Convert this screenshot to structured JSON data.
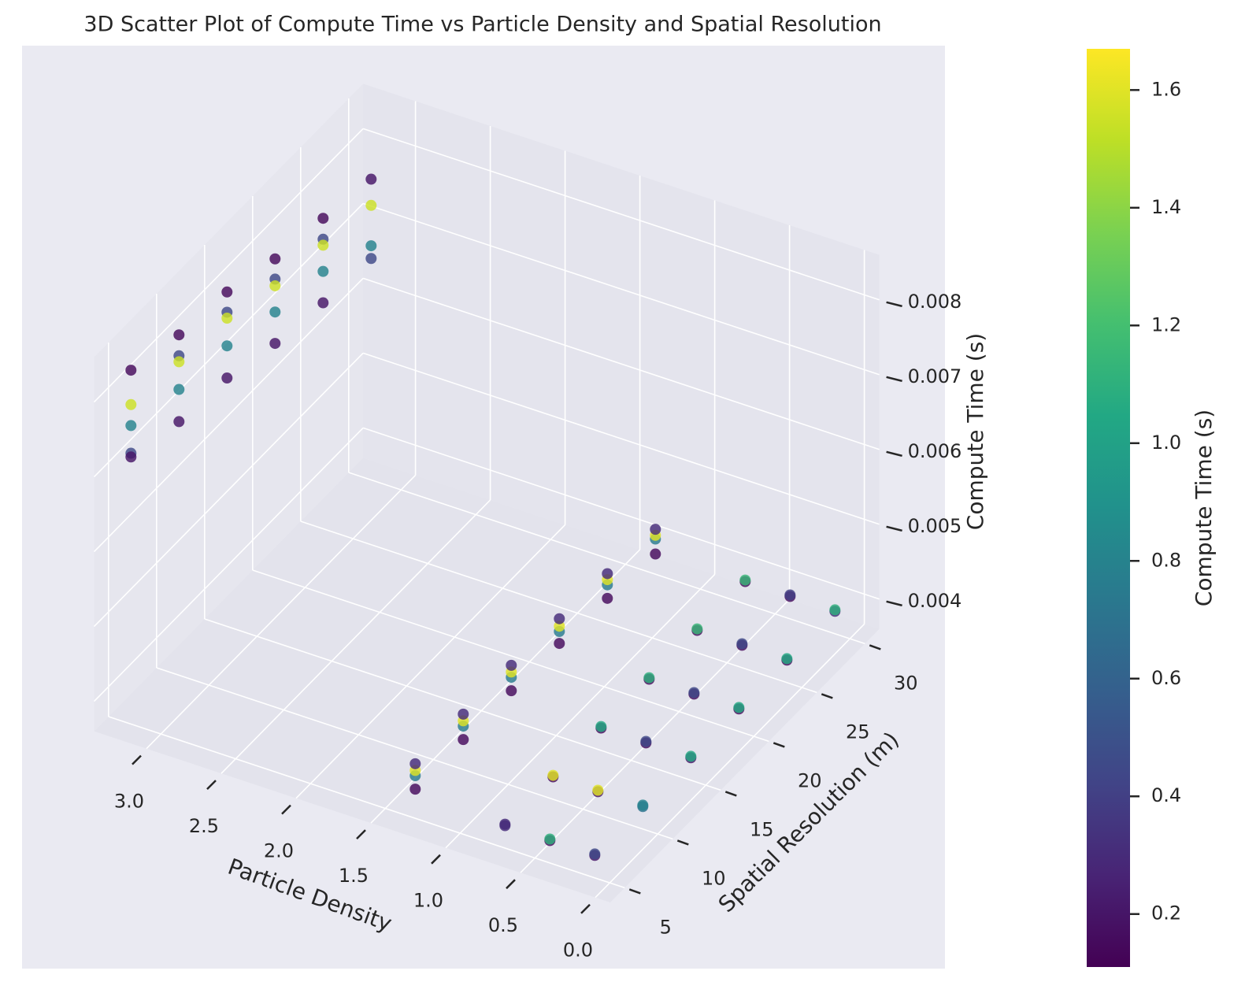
{
  "chart_data": {
    "type": "scatter3d",
    "title": "3D Scatter Plot of Compute Time vs Particle Density and Spatial Resolution",
    "xlabel": "Particle Density",
    "ylabel": "Spatial Resolution (m)",
    "zlabel": "Compute Time (s)",
    "x": [
      3.2,
      3.2,
      3.2,
      3.2,
      3.2,
      3.2,
      3.2,
      3.2,
      3.2,
      3.2,
      3.2,
      3.2,
      3.2,
      3.2,
      3.2,
      3.2,
      3.2,
      3.2,
      3.2,
      3.2,
      3.2,
      3.2,
      3.2,
      3.2,
      3.2,
      3.2,
      3.2,
      3.2,
      3.2,
      1.3,
      1.3,
      1.3,
      1.3,
      1.3,
      1.3,
      1.3,
      1.3,
      1.3,
      1.3,
      1.3,
      1.3,
      1.3,
      1.3,
      1.3,
      1.3,
      1.3,
      1.3,
      1.3,
      1.3,
      1.3,
      1.3,
      1.3,
      1.3,
      0.7,
      0.7,
      0.4,
      0.4,
      0.1,
      0.1,
      0.7,
      0.7,
      0.4,
      0.4,
      0.1,
      0.1,
      0.7,
      0.7,
      0.4,
      0.4,
      0.1,
      0.1,
      0.7,
      0.7,
      0.4,
      0.4,
      0.1,
      0.1,
      0.7,
      0.7,
      0.4,
      0.4,
      0.1,
      0.1,
      0.7,
      0.7,
      0.4,
      0.4,
      0.1,
      0.1
    ],
    "y": [
      5,
      5,
      5,
      5,
      5,
      10,
      10,
      10,
      10,
      10,
      15,
      15,
      15,
      15,
      15,
      20,
      20,
      20,
      20,
      20,
      25,
      25,
      25,
      25,
      25,
      30,
      30,
      30,
      30,
      5,
      5,
      5,
      5,
      10,
      10,
      10,
      10,
      15,
      15,
      15,
      15,
      20,
      20,
      20,
      20,
      25,
      25,
      25,
      25,
      30,
      30,
      30,
      30,
      5,
      5,
      5,
      5,
      5,
      5,
      10,
      10,
      10,
      10,
      10,
      10,
      15,
      15,
      15,
      15,
      15,
      15,
      20,
      20,
      20,
      20,
      20,
      20,
      25,
      25,
      25,
      25,
      25,
      25,
      30,
      30,
      30,
      30,
      30,
      30
    ],
    "z": [
      0.00833,
      0.00787,
      0.00759,
      0.00722,
      0.00717,
      0.00815,
      0.00787,
      0.00779,
      0.00742,
      0.00699,
      0.00807,
      0.0078,
      0.00772,
      0.00735,
      0.00692,
      0.00786,
      0.00759,
      0.0075,
      0.00715,
      0.00673,
      0.00775,
      0.00747,
      0.00739,
      0.00704,
      0.00662,
      0.00762,
      0.00727,
      0.00673,
      0.00656,
      0.00399,
      0.00417,
      0.00424,
      0.00433,
      0.004,
      0.00418,
      0.00425,
      0.00434,
      0.004,
      0.00418,
      0.00425,
      0.00434,
      0.00398,
      0.00414,
      0.00421,
      0.00431,
      0.00393,
      0.00411,
      0.00418,
      0.00426,
      0.00387,
      0.00407,
      0.00412,
      0.0042,
      0.0039,
      0.00392,
      0.0039,
      0.00392,
      0.0039,
      0.00392,
      0.0039,
      0.00392,
      0.0039,
      0.00392,
      0.0039,
      0.00392,
      0.0039,
      0.00392,
      0.0039,
      0.00392,
      0.0039,
      0.00392,
      0.0039,
      0.00392,
      0.0039,
      0.00392,
      0.0039,
      0.00392,
      0.0039,
      0.00392,
      0.0039,
      0.00392,
      0.0039,
      0.00392,
      0.0039,
      0.00392,
      0.0039,
      0.00392,
      0.0039,
      0.00392
    ],
    "c": [
      0.15,
      1.55,
      0.8,
      0.45,
      0.2,
      0.15,
      0.45,
      1.55,
      0.8,
      0.2,
      0.15,
      0.45,
      1.55,
      0.8,
      0.2,
      0.15,
      0.45,
      1.55,
      0.8,
      0.2,
      0.15,
      0.45,
      1.55,
      0.8,
      0.2,
      0.2,
      1.55,
      0.8,
      0.45,
      0.15,
      0.75,
      1.6,
      0.3,
      0.15,
      0.75,
      1.6,
      0.3,
      0.15,
      0.75,
      1.6,
      0.3,
      0.15,
      0.75,
      1.6,
      0.3,
      0.15,
      0.75,
      1.6,
      0.3,
      0.15,
      0.75,
      1.6,
      0.3,
      0.3,
      0.3,
      0.15,
      1.1,
      0.2,
      0.45,
      0.15,
      1.6,
      0.2,
      1.6,
      0.7,
      0.8,
      0.15,
      1.05,
      0.15,
      0.45,
      0.2,
      1.05,
      0.15,
      1.1,
      0.15,
      0.45,
      0.15,
      1.05,
      0.15,
      1.15,
      0.15,
      0.45,
      0.15,
      1.05,
      0.15,
      1.15,
      0.15,
      0.4,
      0.3,
      1.1
    ],
    "colormap": "viridis",
    "clim": [
      0.11,
      1.67
    ],
    "colorbar_label": "Compute Time (s)",
    "colorbar_ticks": [
      0.2,
      0.4,
      0.6,
      0.8,
      {
        "value": 1,
        "label": "1.0"
      },
      1.2,
      1.4,
      1.6
    ],
    "xlim": [
      -0.1,
      3.35
    ],
    "ylim": [
      3.5,
      31.5
    ],
    "zlim": [
      0.0036,
      0.0086
    ],
    "xticks": [
      {
        "value": 0,
        "label": "0.0"
      },
      0.5,
      {
        "value": 1,
        "label": "1.0"
      },
      1.5,
      {
        "value": 2,
        "label": "2.0"
      },
      2.5,
      {
        "value": 3,
        "label": "3.0"
      }
    ],
    "yticks": [
      5,
      10,
      15,
      20,
      25,
      30
    ],
    "zticks": [
      0.004,
      0.005,
      0.006,
      0.007,
      0.008
    ],
    "grid": true
  }
}
